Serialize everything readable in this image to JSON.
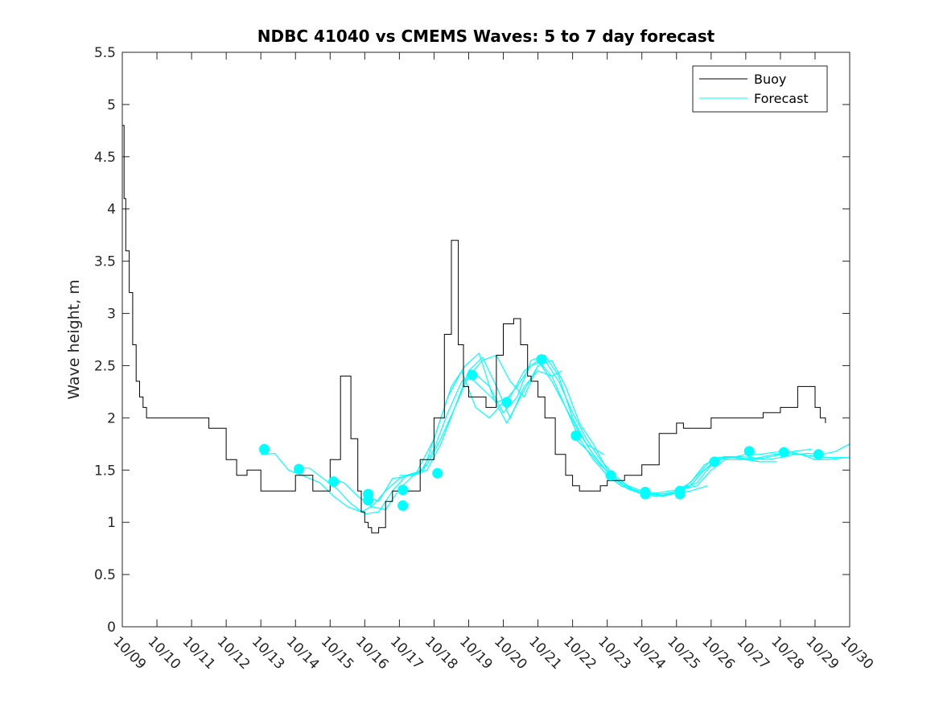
{
  "chart_data": {
    "type": "line",
    "title": "NDBC 41040 vs CMEMS Waves: 5 to 7 day forecast",
    "xlabel": "",
    "ylabel": "Wave height, m",
    "xlim": [
      0,
      21
    ],
    "ylim": [
      0,
      5.5
    ],
    "x_tick_labels": [
      "10/09",
      "10/10",
      "10/11",
      "10/12",
      "10/13",
      "10/14",
      "10/15",
      "10/16",
      "10/17",
      "10/18",
      "10/19",
      "10/20",
      "10/21",
      "10/22",
      "10/23",
      "10/24",
      "10/25",
      "10/26",
      "10/27",
      "10/28",
      "10/29",
      "10/30"
    ],
    "y_ticks": [
      0,
      0.5,
      1,
      1.5,
      2,
      2.5,
      3,
      3.5,
      4,
      4.5,
      5,
      5.5
    ],
    "y_tick_labels": [
      "0",
      "0.5",
      "1",
      "1.5",
      "2",
      "2.5",
      "3",
      "3.5",
      "4",
      "4.5",
      "5",
      "5.5"
    ],
    "grid": false,
    "legend_position": "top-right",
    "legend": [
      "Buoy",
      "Forecast"
    ],
    "colors": {
      "buoy": "#000000",
      "forecast": "#00ffff",
      "axis": "#262626"
    },
    "series": [
      {
        "name": "Buoy",
        "x": [
          0.0,
          0.05,
          0.1,
          0.2,
          0.3,
          0.4,
          0.5,
          0.6,
          0.7,
          0.8,
          1.0,
          1.2,
          1.5,
          2.0,
          2.5,
          3.0,
          3.3,
          3.6,
          4.0,
          4.5,
          5.0,
          5.5,
          6.0,
          6.3,
          6.6,
          6.8,
          6.9,
          7.0,
          7.1,
          7.2,
          7.4,
          7.6,
          7.8,
          8.0,
          8.3,
          8.6,
          9.0,
          9.3,
          9.5,
          9.7,
          9.85,
          10.0,
          10.1,
          10.2,
          10.3,
          10.5,
          10.8,
          11.0,
          11.3,
          11.5,
          11.7,
          11.8,
          12.0,
          12.2,
          12.5,
          12.8,
          13.0,
          13.2,
          13.5,
          13.8,
          14.0,
          14.5,
          15.0,
          15.5,
          16.0,
          16.2,
          16.5,
          17.0,
          17.5,
          18.0,
          18.5,
          19.0,
          19.5,
          20.0,
          20.15,
          20.3
        ],
        "y": [
          4.8,
          4.1,
          3.6,
          3.2,
          2.7,
          2.35,
          2.2,
          2.1,
          2.0,
          2.0,
          2.0,
          2.0,
          2.0,
          2.0,
          1.9,
          1.6,
          1.45,
          1.5,
          1.3,
          1.3,
          1.45,
          1.3,
          1.6,
          2.4,
          1.8,
          1.3,
          1.1,
          1.0,
          0.95,
          0.9,
          0.95,
          1.2,
          1.3,
          1.3,
          1.3,
          1.6,
          2.0,
          2.8,
          3.7,
          2.7,
          2.3,
          2.2,
          2.2,
          2.2,
          2.2,
          2.1,
          2.6,
          2.9,
          2.95,
          2.7,
          2.4,
          2.35,
          2.2,
          2.0,
          1.65,
          1.45,
          1.35,
          1.3,
          1.3,
          1.35,
          1.4,
          1.45,
          1.55,
          1.85,
          1.95,
          1.9,
          1.9,
          2.0,
          2.0,
          2.0,
          2.05,
          2.1,
          2.3,
          2.1,
          2.0,
          1.95
        ]
      },
      {
        "name": "Forecast",
        "runs": [
          {
            "x": [
              4.0,
              4.4,
              4.8,
              5.2,
              5.7,
              6.1,
              6.5,
              6.9,
              7.2,
              7.6,
              8.0,
              8.5,
              9.0,
              9.4,
              9.8,
              10.2,
              10.6,
              11.0
            ],
            "y": [
              1.65,
              1.66,
              1.5,
              1.45,
              1.38,
              1.25,
              1.15,
              1.1,
              1.15,
              1.3,
              1.42,
              1.48,
              1.8,
              2.2,
              2.45,
              2.1,
              2.0,
              2.15
            ]
          },
          {
            "x": [
              5.0,
              5.4,
              5.8,
              6.2,
              6.6,
              7.0,
              7.4,
              7.8,
              8.2,
              8.7,
              9.1,
              9.5,
              9.9,
              10.3,
              10.7,
              11.1,
              11.5,
              12.0
            ],
            "y": [
              1.52,
              1.52,
              1.42,
              1.32,
              1.18,
              1.08,
              1.1,
              1.3,
              1.45,
              1.5,
              1.9,
              2.3,
              2.5,
              2.62,
              2.2,
              1.95,
              2.2,
              2.5
            ]
          },
          {
            "x": [
              6.0,
              6.4,
              6.8,
              7.2,
              7.6,
              8.0,
              8.4,
              8.8,
              9.2,
              9.6,
              10.0,
              10.4,
              10.8,
              11.2,
              11.6,
              12.0,
              12.4,
              12.7
            ],
            "y": [
              1.42,
              1.38,
              1.25,
              1.15,
              1.12,
              1.32,
              1.45,
              1.5,
              1.75,
              2.1,
              2.45,
              2.58,
              2.3,
              2.0,
              2.3,
              2.45,
              2.4,
              2.45
            ]
          },
          {
            "x": [
              7.0,
              7.4,
              7.8,
              8.2,
              8.6,
              9.0,
              9.4,
              9.8,
              10.2,
              10.6,
              11.0,
              11.4,
              11.8,
              12.2,
              12.6,
              13.0,
              13.4,
              13.9
            ],
            "y": [
              1.26,
              1.2,
              1.42,
              1.44,
              1.48,
              1.7,
              2.05,
              2.35,
              2.42,
              2.3,
              2.05,
              2.2,
              2.55,
              2.6,
              2.4,
              2.0,
              1.75,
              1.65
            ]
          },
          {
            "x": [
              8.0,
              8.4,
              8.8,
              9.2,
              9.6,
              10.0,
              10.4,
              10.8,
              11.2,
              11.6,
              12.0,
              12.4,
              12.8,
              13.2,
              13.6,
              14.0,
              14.4,
              14.9
            ],
            "y": [
              1.45,
              1.45,
              1.55,
              1.8,
              2.1,
              2.4,
              2.28,
              2.15,
              2.2,
              2.45,
              2.55,
              2.4,
              2.1,
              1.8,
              1.6,
              1.45,
              1.35,
              1.3
            ]
          },
          {
            "x": [
              10.0,
              10.4,
              10.8,
              11.2,
              11.6,
              12.0,
              12.4,
              12.8,
              13.2,
              13.6,
              14.0,
              14.4,
              14.8,
              15.2,
              15.6,
              16.0,
              16.4,
              16.9
            ],
            "y": [
              2.4,
              2.55,
              2.6,
              2.35,
              2.2,
              2.5,
              2.55,
              2.3,
              1.95,
              1.75,
              1.5,
              1.4,
              1.3,
              1.28,
              1.25,
              1.28,
              1.3,
              1.35
            ]
          },
          {
            "x": [
              11.0,
              11.4,
              11.8,
              12.2,
              12.6,
              13.0,
              13.4,
              13.8,
              14.2,
              14.6,
              15.0,
              15.4,
              15.8,
              16.2,
              16.6,
              17.0,
              17.4,
              17.9
            ],
            "y": [
              2.15,
              2.3,
              2.5,
              2.55,
              2.35,
              2.05,
              1.8,
              1.6,
              1.45,
              1.35,
              1.3,
              1.28,
              1.3,
              1.32,
              1.35,
              1.5,
              1.6,
              1.6
            ]
          },
          {
            "x": [
              12.0,
              12.4,
              12.8,
              13.2,
              13.6,
              14.0,
              14.4,
              14.8,
              15.2,
              15.6,
              16.0,
              16.4,
              16.8,
              17.2,
              17.6,
              18.0,
              18.4,
              18.9
            ],
            "y": [
              2.55,
              2.35,
              2.1,
              1.85,
              1.65,
              1.48,
              1.38,
              1.3,
              1.28,
              1.25,
              1.3,
              1.38,
              1.55,
              1.62,
              1.62,
              1.6,
              1.58,
              1.58
            ]
          },
          {
            "x": [
              13.0,
              13.4,
              13.8,
              14.2,
              14.6,
              15.0,
              15.4,
              15.8,
              16.2,
              16.6,
              17.0,
              17.4,
              17.8,
              18.2,
              18.6,
              19.0,
              19.4,
              19.9
            ],
            "y": [
              1.82,
              1.7,
              1.55,
              1.42,
              1.32,
              1.27,
              1.25,
              1.27,
              1.32,
              1.45,
              1.6,
              1.63,
              1.62,
              1.6,
              1.62,
              1.65,
              1.68,
              1.7
            ]
          },
          {
            "x": [
              14.0,
              14.4,
              14.8,
              15.2,
              15.6,
              16.0,
              16.4,
              16.8,
              17.2,
              17.6,
              18.0,
              18.4,
              18.8,
              19.2,
              19.6,
              20.0,
              20.4,
              20.9
            ],
            "y": [
              1.45,
              1.35,
              1.3,
              1.27,
              1.26,
              1.3,
              1.35,
              1.5,
              1.6,
              1.62,
              1.65,
              1.65,
              1.67,
              1.68,
              1.65,
              1.6,
              1.6,
              1.62
            ]
          },
          {
            "x": [
              15.0,
              15.4,
              15.8,
              16.2,
              16.6,
              17.0,
              17.4,
              17.8,
              18.2,
              18.6,
              19.0,
              19.4,
              19.8,
              20.2,
              20.6,
              21.0
            ],
            "y": [
              1.28,
              1.27,
              1.28,
              1.32,
              1.38,
              1.55,
              1.62,
              1.63,
              1.62,
              1.6,
              1.62,
              1.65,
              1.66,
              1.65,
              1.68,
              1.75
            ]
          },
          {
            "x": [
              16.0,
              16.4,
              16.8,
              17.2,
              17.6,
              18.0,
              18.4,
              18.8,
              19.2,
              19.6,
              20.0,
              20.4,
              20.8,
              21.0
            ],
            "y": [
              1.32,
              1.35,
              1.5,
              1.62,
              1.63,
              1.6,
              1.62,
              1.65,
              1.66,
              1.65,
              1.63,
              1.62,
              1.62,
              1.62
            ]
          }
        ],
        "markers": {
          "x": [
            4.1,
            5.1,
            6.1,
            7.1,
            7.1,
            8.1,
            8.1,
            9.1,
            10.1,
            11.1,
            12.1,
            13.1,
            14.1,
            15.1,
            15.1,
            16.1,
            16.1,
            17.1,
            18.1,
            19.1,
            20.1
          ],
          "y": [
            1.7,
            1.51,
            1.39,
            1.27,
            1.21,
            1.31,
            1.16,
            1.47,
            2.41,
            2.15,
            2.56,
            1.83,
            1.45,
            1.29,
            1.27,
            1.3,
            1.27,
            1.58,
            1.68,
            1.67,
            1.65
          ]
        }
      }
    ]
  }
}
